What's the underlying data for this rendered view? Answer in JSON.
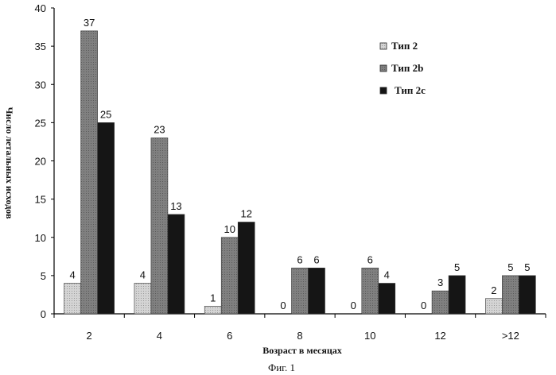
{
  "chart_data": {
    "type": "bar",
    "categories": [
      "2",
      "4",
      "6",
      "8",
      "10",
      "12",
      ">12"
    ],
    "series": [
      {
        "name": "Тип 2",
        "values": [
          4,
          4,
          1,
          0,
          0,
          0,
          2
        ],
        "color": "#c8c8c8"
      },
      {
        "name": "Тип 2b",
        "values": [
          37,
          23,
          10,
          6,
          6,
          3,
          5
        ],
        "color": "#7a7a7a"
      },
      {
        "name": "Тип 2c",
        "values": [
          25,
          13,
          12,
          6,
          4,
          5,
          5
        ],
        "color": "#1a1a1a"
      }
    ],
    "xlabel": "Возраст в месяцах",
    "ylabel": "Число летальных исходов",
    "ylim": [
      0,
      40
    ],
    "yticks": [
      0,
      5,
      10,
      15,
      20,
      25,
      30,
      35,
      40
    ],
    "grid": false,
    "legend": "top-right",
    "caption": "Фиг. 1"
  }
}
